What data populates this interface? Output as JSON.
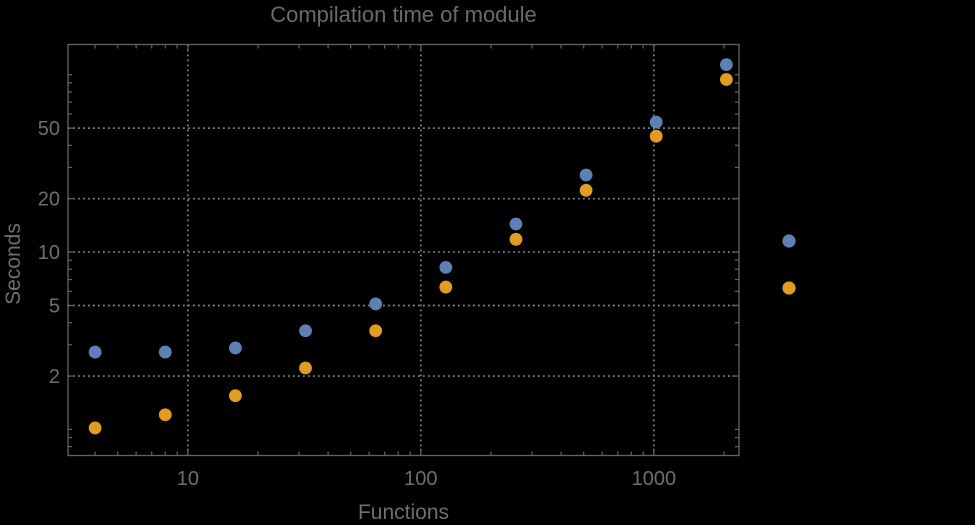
{
  "title": "Compilation time of module",
  "axes": {
    "xlabel": "Functions",
    "ylabel": "Seconds"
  },
  "colors": {
    "background": "#000000",
    "frame": "#646464",
    "grid": "#848484",
    "tick_labels": "#6e6e6e",
    "title_text": "#6b6b6b",
    "series_blue": "#5e81b5",
    "series_orange": "#e19c24"
  },
  "chart_data": {
    "type": "scatter",
    "x_scale": "log",
    "y_scale": "log",
    "title": "Compilation time of module",
    "xlabel": "Functions",
    "ylabel": "Seconds",
    "grid": true,
    "x": [
      4,
      8,
      16,
      32,
      64,
      128,
      256,
      512,
      1024,
      2048
    ],
    "series": [
      {
        "name": "blue",
        "color": "#5e81b5",
        "values": [
          2.73,
          2.73,
          2.88,
          3.6,
          5.1,
          8.2,
          14.4,
          27.2,
          54,
          114
        ]
      },
      {
        "name": "orange",
        "color": "#e19c24",
        "values": [
          1.02,
          1.21,
          1.55,
          2.22,
          3.6,
          6.35,
          11.8,
          22.3,
          45,
          94
        ]
      }
    ],
    "x_range": [
      3.06,
      2320
    ],
    "y_range": [
      0.713,
      148
    ],
    "x_ticks": [
      10,
      100,
      1000
    ],
    "x_tick_labels": [
      "10",
      "100",
      "1000"
    ],
    "x_minor_ticks": [
      4,
      5,
      6,
      7,
      8,
      9,
      20,
      30,
      40,
      50,
      60,
      70,
      80,
      90,
      200,
      300,
      400,
      500,
      600,
      700,
      800,
      900,
      2000
    ],
    "y_ticks": [
      2,
      5,
      10,
      20,
      50
    ],
    "y_tick_labels": [
      "2",
      "5",
      "10",
      "20",
      "50"
    ],
    "y_minor_ticks": [
      0.8,
      0.9,
      1,
      3,
      4,
      6,
      7,
      8,
      9,
      30,
      40,
      60,
      70,
      80,
      90,
      100
    ],
    "legend": {
      "position": "right-outside",
      "labels_visible": false,
      "markers": [
        {
          "series": "blue",
          "color": "#5e81b5"
        },
        {
          "series": "orange",
          "color": "#e19c24"
        }
      ]
    }
  }
}
